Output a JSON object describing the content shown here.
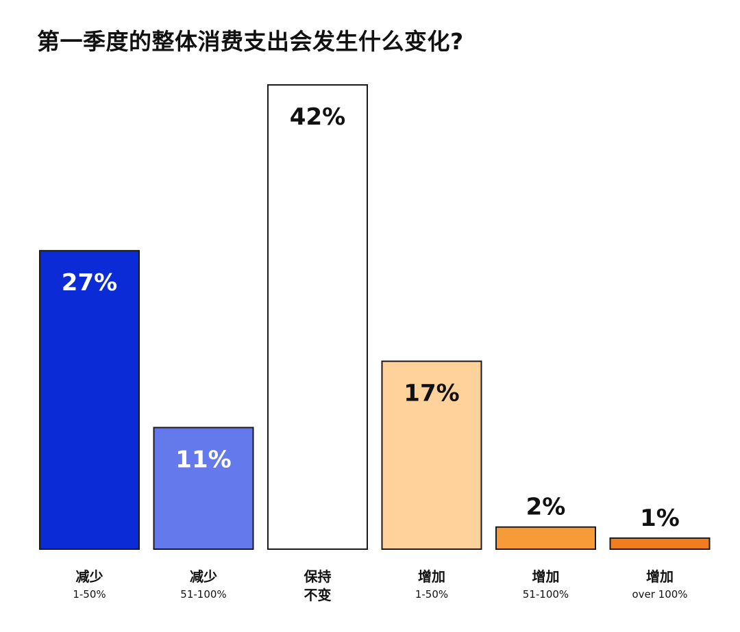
{
  "chart_data": {
    "type": "bar",
    "title": "第一季度的整体消费支出会发生什么变化?",
    "categories": [
      [
        "减少",
        "1-50%"
      ],
      [
        "减少",
        "51-100%"
      ],
      [
        "保持",
        "不变"
      ],
      [
        "增加",
        "1-50%"
      ],
      [
        "增加",
        "51-100%"
      ],
      [
        "增加",
        "over 100%"
      ]
    ],
    "values": [
      27,
      11,
      42,
      17,
      2,
      1
    ],
    "value_labels": [
      "27%",
      "11%",
      "42%",
      "17%",
      "2%",
      "1%"
    ],
    "unit": "%",
    "ylim": [
      0,
      42
    ],
    "grid": false,
    "legend": "none",
    "colors": [
      "#0b2bd6",
      "#6479ec",
      "#ffffff",
      "#ffd29c",
      "#f79a38",
      "#f07d1e"
    ],
    "label_colors": [
      "#ffffff",
      "#ffffff",
      "#111111",
      "#111111",
      "#111111",
      "#111111"
    ],
    "stroke_color": "#1a1a1a"
  }
}
